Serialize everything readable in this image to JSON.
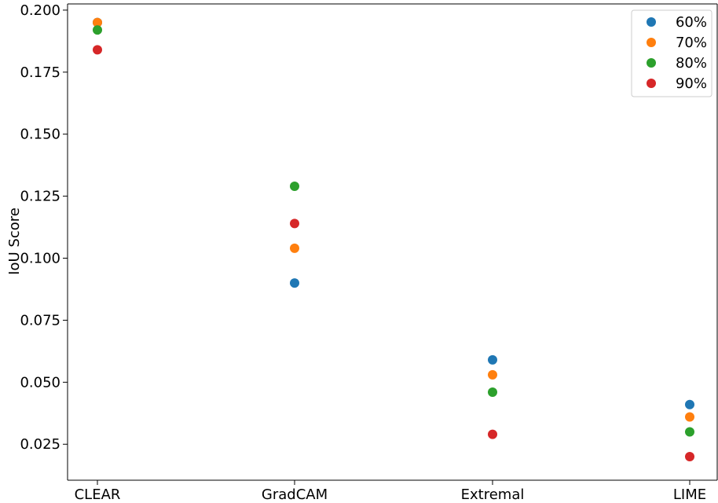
{
  "chart_data": {
    "type": "scatter",
    "title": "",
    "xlabel": "",
    "ylabel": "IoU Score",
    "categories": [
      "CLEAR",
      "GradCAM",
      "Extremal",
      "LIME"
    ],
    "ylim": [
      0.0105,
      0.2025
    ],
    "yticks": [
      "0.025",
      "0.050",
      "0.075",
      "0.100",
      "0.125",
      "0.150",
      "0.175",
      "0.200"
    ],
    "grid": false,
    "legend_position": "top-right",
    "series": [
      {
        "name": "60%",
        "color": "#1f77b4",
        "values": [
          0.195,
          0.09,
          0.059,
          0.041
        ]
      },
      {
        "name": "70%",
        "color": "#ff7f0e",
        "values": [
          0.195,
          0.104,
          0.053,
          0.036
        ]
      },
      {
        "name": "80%",
        "color": "#2ca02c",
        "values": [
          0.192,
          0.129,
          0.046,
          0.03
        ]
      },
      {
        "name": "90%",
        "color": "#d62728",
        "values": [
          0.184,
          0.114,
          0.029,
          0.02
        ]
      }
    ]
  }
}
